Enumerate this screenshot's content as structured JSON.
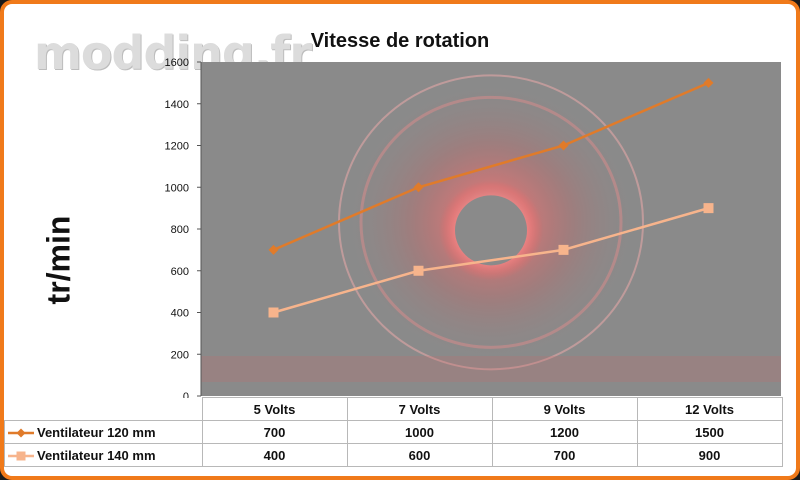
{
  "watermark": "modding.fr",
  "chart_data": {
    "type": "line",
    "title": "Vitesse de rotation",
    "ylabel": "tr/min",
    "xlabel": "",
    "categories": [
      "5 Volts",
      "7 Volts",
      "9 Volts",
      "12 Volts"
    ],
    "ylim": [
      0,
      1600
    ],
    "yticks": [
      0,
      200,
      400,
      600,
      800,
      1000,
      1200,
      1400,
      1600
    ],
    "grid": false,
    "legend": "data-table",
    "series": [
      {
        "name": "Ventilateur 120 mm",
        "values": [
          700,
          1000,
          1200,
          1500
        ],
        "color": "#e07b2a",
        "marker": "diamond"
      },
      {
        "name": "Ventilateur 140 mm",
        "values": [
          400,
          600,
          700,
          900
        ],
        "color": "#f7b48c",
        "marker": "square"
      }
    ],
    "plot_background": "#8a8a8a"
  },
  "table": {
    "rows": [
      {
        "label": "Ventilateur 120 mm",
        "values": [
          "700",
          "1000",
          "1200",
          "1500"
        ]
      },
      {
        "label": "Ventilateur 140 mm",
        "values": [
          "400",
          "600",
          "700",
          "900"
        ]
      }
    ]
  }
}
